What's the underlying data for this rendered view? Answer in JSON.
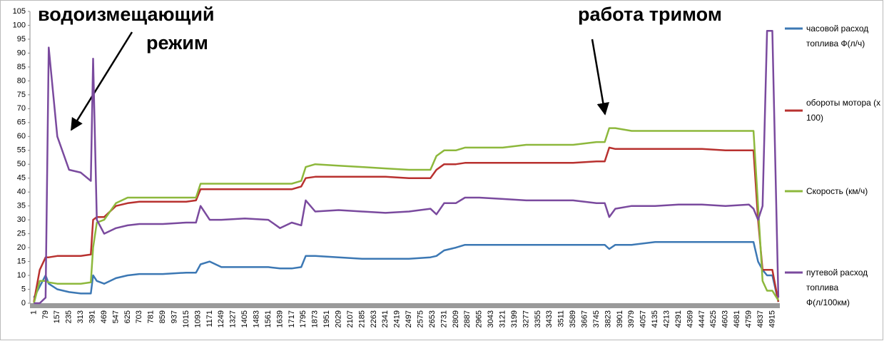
{
  "chart_data": {
    "type": "line",
    "annotations": [
      "водоизмещающий",
      "режим",
      "работа тримом"
    ],
    "x": [
      1,
      40,
      79,
      100,
      157,
      235,
      313,
      380,
      395,
      420,
      469,
      547,
      625,
      703,
      859,
      1015,
      1080,
      1110,
      1171,
      1249,
      1405,
      1561,
      1639,
      1717,
      1780,
      1810,
      1873,
      2029,
      2185,
      2341,
      2497,
      2640,
      2680,
      2731,
      2809,
      2870,
      2965,
      3121,
      3277,
      3433,
      3589,
      3745,
      3800,
      3830,
      3870,
      3979,
      4135,
      4291,
      4447,
      4603,
      4759,
      4790,
      4820,
      4850,
      4880,
      4915,
      4955
    ],
    "series": [
      {
        "name": "часовой расход топлива Ф(л/ч)",
        "color": "#3c78b4",
        "values": [
          2,
          6,
          10,
          7,
          5,
          4,
          3.5,
          3.5,
          10,
          8,
          7,
          9,
          10,
          10.5,
          10.5,
          11,
          11,
          14,
          15,
          13,
          13,
          13,
          12.5,
          12.5,
          13,
          17,
          17,
          16.5,
          16,
          16,
          16,
          16.5,
          17,
          19,
          20,
          21,
          21,
          21,
          21,
          21,
          21,
          21,
          21,
          19.5,
          21,
          21,
          22,
          22,
          22,
          22,
          22,
          22,
          15,
          12,
          10,
          10,
          0.5
        ]
      },
      {
        "name": "обороты мотора (х 100)",
        "color": "#b8312f",
        "values": [
          0.5,
          12,
          16.5,
          16.5,
          17,
          17,
          17,
          17.5,
          30,
          31,
          31,
          35,
          36,
          36.5,
          36.5,
          36.5,
          37,
          41,
          41,
          41,
          41,
          41,
          41,
          41,
          42,
          45,
          45.5,
          45.5,
          45.5,
          45.5,
          45,
          45,
          48,
          50,
          50,
          50.5,
          50.5,
          50.5,
          50.5,
          50.5,
          50.5,
          51,
          51,
          56,
          55.5,
          55.5,
          55.5,
          55.5,
          55.5,
          55,
          55,
          55,
          30,
          12,
          12,
          12,
          0.5
        ]
      },
      {
        "name": "Скорость (км/ч)",
        "color": "#8db83c",
        "values": [
          0,
          8,
          8,
          7.5,
          7,
          7,
          7,
          7.5,
          20,
          29,
          30,
          36,
          38,
          38,
          38,
          38,
          38,
          43,
          43,
          43,
          43,
          43,
          43,
          43,
          44,
          49,
          50,
          49.5,
          49,
          48.5,
          48,
          48,
          53,
          55,
          55,
          56,
          56,
          56,
          57,
          57,
          57,
          58,
          58,
          63,
          63,
          62,
          62,
          62,
          62,
          62,
          62,
          62,
          35,
          8,
          4.5,
          4.5,
          1
        ]
      },
      {
        "name": "путевой расход топлива Ф(л/100км)",
        "color": "#7a4a9e",
        "values": [
          0,
          0,
          2,
          92,
          60,
          48,
          47,
          44,
          88,
          30,
          25,
          27,
          28,
          28.5,
          28.5,
          29,
          29,
          35,
          30,
          30,
          30.5,
          30,
          27,
          29,
          28,
          37,
          33,
          33.5,
          33,
          32.5,
          33,
          34,
          32,
          36,
          36,
          38,
          38,
          37.5,
          37,
          37,
          37,
          36,
          36,
          31,
          34,
          35,
          35,
          35.5,
          35.5,
          35,
          35.5,
          34,
          30,
          35,
          98,
          98,
          2
        ]
      }
    ],
    "xlim": [
      -25,
      4965
    ],
    "xticks": [
      1,
      79,
      157,
      235,
      313,
      391,
      469,
      547,
      625,
      703,
      781,
      859,
      937,
      1015,
      1093,
      1171,
      1249,
      1327,
      1405,
      1483,
      1561,
      1639,
      1717,
      1795,
      1873,
      1951,
      2029,
      2107,
      2185,
      2263,
      2341,
      2419,
      2497,
      2575,
      2653,
      2731,
      2809,
      2887,
      2965,
      3043,
      3121,
      3199,
      3277,
      3355,
      3433,
      3511,
      3589,
      3667,
      3745,
      3823,
      3901,
      3979,
      4057,
      4135,
      4213,
      4291,
      4369,
      4447,
      4525,
      4603,
      4681,
      4759,
      4837,
      4915
    ],
    "ylim": [
      0,
      105
    ],
    "yticks": [
      0,
      5,
      10,
      15,
      20,
      25,
      30,
      35,
      40,
      45,
      50,
      55,
      60,
      65,
      70,
      75,
      80,
      85,
      90,
      95,
      100,
      105
    ],
    "grid": false,
    "legend": "right"
  }
}
